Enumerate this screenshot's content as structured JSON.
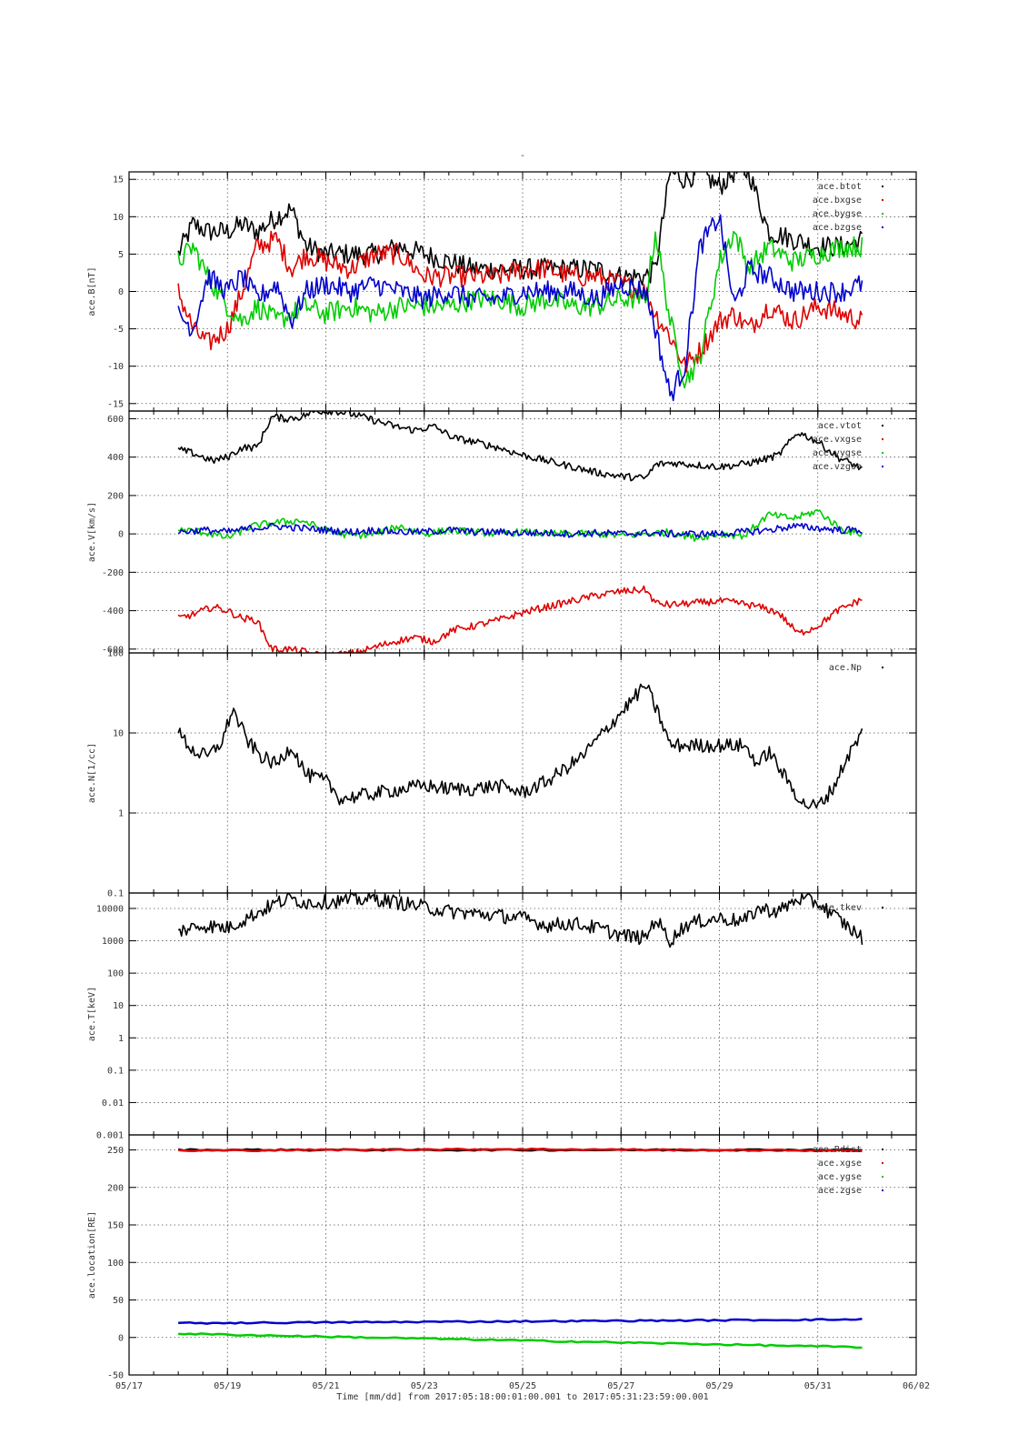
{
  "figure": {
    "title": "-",
    "x_label": "Time [mm/dd]  from 2017:05:18:00:01:00.001  to  2017:05:31:23:59:00.001",
    "x_ticks": [
      "05/17",
      "05/19",
      "05/21",
      "05/23",
      "05/25",
      "05/27",
      "05/29",
      "05/31",
      "06/02"
    ]
  },
  "colors": {
    "black": "#000000",
    "red": "#dd0000",
    "green": "#00cc00",
    "blue": "#0000cc"
  },
  "chart_data": [
    {
      "type": "scatter",
      "ylabel": "ace.B[nT]",
      "ylim": [
        -16,
        16
      ],
      "y_ticks": [
        "15",
        "10",
        "5",
        "0",
        "-5",
        "-10",
        "-15"
      ],
      "y_tick_values": [
        15,
        10,
        5,
        0,
        -5,
        -10,
        -15
      ],
      "grid": true,
      "legend": "top-right",
      "series": [
        {
          "name": "ace.btot",
          "color": "#000000",
          "x": [
            18.0,
            18.3,
            18.6,
            19.0,
            19.3,
            19.6,
            20.0,
            20.3,
            20.6,
            21.0,
            21.5,
            22.0,
            22.5,
            23.0,
            23.5,
            24.0,
            24.5,
            25.0,
            25.5,
            26.0,
            26.5,
            27.0,
            27.5,
            27.7,
            28.0,
            28.3,
            28.6,
            29.0,
            29.3,
            29.6,
            30.0,
            30.5,
            31.0,
            31.5,
            31.9
          ],
          "y": [
            5,
            9,
            8,
            8,
            9,
            8,
            10,
            11,
            6,
            5,
            5,
            5,
            6,
            5,
            4,
            3,
            3,
            3,
            3,
            3,
            3,
            2,
            2,
            3,
            16,
            15,
            16,
            14,
            16,
            16,
            8,
            7,
            6,
            6,
            7
          ]
        },
        {
          "name": "ace.bxgse",
          "color": "#dd0000",
          "x": [
            18.0,
            18.3,
            18.6,
            19.0,
            19.3,
            19.6,
            20.0,
            20.3,
            20.6,
            21.0,
            21.5,
            22.0,
            22.5,
            23.0,
            23.5,
            24.0,
            24.5,
            25.0,
            25.5,
            26.0,
            26.5,
            27.0,
            27.5,
            27.7,
            28.0,
            28.3,
            28.6,
            29.0,
            29.3,
            29.6,
            30.0,
            30.5,
            31.0,
            31.5,
            31.9
          ],
          "y": [
            0,
            -5,
            -7,
            -5,
            0,
            6,
            7,
            3,
            5,
            4,
            3,
            5,
            5,
            2,
            2,
            2,
            2,
            3,
            3,
            2,
            2,
            1,
            0,
            -3,
            -6,
            -10,
            -8,
            -4,
            -3,
            -5,
            -2,
            -4,
            -2,
            -3,
            -4
          ]
        },
        {
          "name": "ace.bygse",
          "color": "#00cc00",
          "x": [
            18.0,
            18.3,
            18.6,
            19.0,
            19.3,
            19.6,
            20.0,
            20.3,
            20.6,
            21.0,
            21.5,
            22.0,
            22.5,
            23.0,
            23.5,
            24.0,
            24.5,
            25.0,
            25.5,
            26.0,
            26.5,
            27.0,
            27.5,
            27.7,
            28.0,
            28.3,
            28.6,
            29.0,
            29.3,
            29.6,
            30.0,
            30.5,
            31.0,
            31.5,
            31.9
          ],
          "y": [
            4,
            6,
            2,
            -2,
            -4,
            -2,
            -4,
            -3,
            -2,
            -3,
            -2,
            -3,
            -2,
            -2,
            -2,
            -1,
            -1,
            -2,
            -1,
            -2,
            -2,
            -1,
            -1,
            8,
            -4,
            -12,
            -9,
            4,
            8,
            3,
            6,
            4,
            5,
            6,
            6
          ]
        },
        {
          "name": "ace.bzgse",
          "color": "#0000cc",
          "x": [
            18.0,
            18.3,
            18.6,
            19.0,
            19.3,
            19.6,
            20.0,
            20.3,
            20.6,
            21.0,
            21.5,
            22.0,
            22.5,
            23.0,
            23.5,
            24.0,
            24.5,
            25.0,
            25.5,
            26.0,
            26.5,
            27.0,
            27.5,
            27.7,
            28.0,
            28.3,
            28.6,
            29.0,
            29.3,
            29.6,
            30.0,
            30.5,
            31.0,
            31.5,
            31.9
          ],
          "y": [
            -3,
            -5,
            2,
            0,
            2,
            -1,
            1,
            -4,
            0,
            1,
            0,
            1,
            0,
            -1,
            0,
            -1,
            -1,
            0,
            0,
            0,
            -1,
            1,
            0,
            -5,
            -14,
            -10,
            6,
            10,
            -2,
            3,
            2,
            0,
            0,
            0,
            1
          ]
        }
      ]
    },
    {
      "type": "scatter",
      "ylabel": "ace.V[km/s]",
      "ylim": [
        -620,
        640
      ],
      "y_ticks": [
        "600",
        "400",
        "200",
        "0",
        "-200",
        "-400",
        "-600"
      ],
      "y_tick_values": [
        600,
        400,
        200,
        0,
        -200,
        -400,
        -600
      ],
      "grid": true,
      "legend": "top-right",
      "series": [
        {
          "name": "ace.vtot",
          "color": "#000000",
          "x": [
            18.0,
            18.3,
            18.7,
            19.0,
            19.3,
            19.6,
            19.9,
            20.2,
            20.5,
            20.8,
            21.2,
            21.6,
            22.0,
            22.4,
            22.8,
            23.2,
            23.6,
            24.0,
            24.5,
            25.0,
            25.5,
            26.0,
            26.5,
            27.0,
            27.5,
            27.7,
            28.0,
            28.5,
            29.0,
            29.4,
            29.8,
            30.2,
            30.6,
            31.0,
            31.4,
            31.9
          ],
          "y": [
            440,
            420,
            380,
            400,
            450,
            450,
            610,
            600,
            610,
            640,
            640,
            620,
            590,
            560,
            540,
            560,
            500,
            480,
            450,
            410,
            380,
            350,
            320,
            300,
            290,
            360,
            370,
            360,
            350,
            360,
            380,
            410,
            530,
            480,
            400,
            340
          ]
        },
        {
          "name": "ace.vxgse",
          "color": "#dd0000",
          "x": [
            18.0,
            18.3,
            18.7,
            19.0,
            19.3,
            19.6,
            19.9,
            20.2,
            20.5,
            20.8,
            21.2,
            21.6,
            22.0,
            22.4,
            22.8,
            23.2,
            23.6,
            24.0,
            24.5,
            25.0,
            25.5,
            26.0,
            26.5,
            27.0,
            27.5,
            27.7,
            28.0,
            28.5,
            29.0,
            29.4,
            29.8,
            30.2,
            30.6,
            31.0,
            31.4,
            31.9
          ],
          "y": [
            -440,
            -420,
            -380,
            -400,
            -440,
            -450,
            -600,
            -600,
            -610,
            -630,
            -630,
            -620,
            -590,
            -560,
            -540,
            -560,
            -500,
            -480,
            -450,
            -410,
            -380,
            -350,
            -320,
            -300,
            -290,
            -360,
            -370,
            -360,
            -350,
            -360,
            -380,
            -410,
            -520,
            -480,
            -400,
            -340
          ]
        },
        {
          "name": "ace.vygse",
          "color": "#00cc00",
          "x": [
            18.0,
            18.5,
            19.0,
            19.5,
            20.0,
            20.5,
            21.0,
            21.5,
            22.0,
            22.5,
            23.0,
            23.5,
            24.0,
            24.5,
            25.0,
            25.5,
            26.0,
            26.5,
            27.0,
            27.5,
            28.0,
            28.5,
            29.0,
            29.5,
            30.0,
            30.5,
            31.0,
            31.5,
            31.9
          ],
          "y": [
            20,
            10,
            -20,
            40,
            60,
            70,
            20,
            -10,
            0,
            40,
            0,
            20,
            10,
            0,
            10,
            0,
            0,
            0,
            -10,
            0,
            10,
            -20,
            0,
            -10,
            100,
            80,
            120,
            20,
            0
          ]
        },
        {
          "name": "ace.vzgse",
          "color": "#0000cc",
          "x": [
            18.0,
            18.5,
            19.0,
            19.5,
            20.0,
            20.5,
            21.0,
            21.5,
            22.0,
            22.5,
            23.0,
            23.5,
            24.0,
            24.5,
            25.0,
            25.5,
            26.0,
            26.5,
            27.0,
            27.5,
            28.0,
            28.5,
            29.0,
            29.5,
            30.0,
            30.5,
            31.0,
            31.5,
            31.9
          ],
          "y": [
            10,
            20,
            10,
            30,
            40,
            30,
            20,
            10,
            20,
            10,
            10,
            20,
            10,
            10,
            5,
            5,
            0,
            5,
            0,
            5,
            0,
            0,
            0,
            10,
            20,
            40,
            30,
            20,
            20
          ]
        }
      ]
    },
    {
      "type": "scatter",
      "ylabel": "ace.N[1/cc]",
      "y_scale": "log",
      "ylim": [
        0.1,
        100
      ],
      "y_ticks": [
        "100",
        "10",
        "1",
        "0.1"
      ],
      "y_tick_values": [
        100,
        10,
        1,
        0.1
      ],
      "grid": true,
      "legend": "top-right",
      "series": [
        {
          "name": "ace.Np",
          "color": "#000000",
          "x": [
            18.0,
            18.3,
            18.6,
            18.9,
            19.1,
            19.4,
            19.7,
            20.0,
            20.3,
            20.6,
            21.0,
            21.3,
            23.0,
            23.5,
            24.0,
            24.5,
            25.0,
            25.5,
            26.2,
            27.5,
            27.8,
            28.0,
            29.5,
            29.8,
            30.0,
            30.3,
            30.7,
            31.0,
            31.3,
            31.6,
            31.9
          ],
          "y": [
            10,
            6,
            5,
            8,
            20,
            8,
            5,
            4,
            7,
            3,
            2.5,
            1.5,
            2.2,
            2,
            2,
            2.2,
            1.8,
            2.5,
            5,
            40,
            15,
            7,
            7,
            4,
            6,
            3,
            1.3,
            1.2,
            2,
            5,
            10
          ]
        }
      ]
    },
    {
      "type": "scatter",
      "ylabel": "ace.T[keV]",
      "y_scale": "log",
      "ylim": [
        0.001,
        30000
      ],
      "y_ticks": [
        "10000",
        "1000",
        "100",
        "10",
        "1",
        "0.1",
        "0.01",
        "0.001"
      ],
      "y_tick_values": [
        10000,
        1000,
        100,
        10,
        1,
        0.1,
        0.01,
        0.001
      ],
      "grid": true,
      "legend": "top-right",
      "series": [
        {
          "name": "ace.tkev",
          "color": "#000000",
          "x": [
            18.0,
            18.5,
            19.0,
            19.5,
            20.0,
            20.3,
            20.6,
            21.0,
            21.5,
            22.0,
            22.5,
            23.0,
            23.5,
            24.0,
            24.5,
            25.0,
            25.5,
            26.0,
            26.5,
            27.0,
            27.5,
            27.7,
            28.0,
            28.3,
            28.6,
            29.0,
            29.5,
            29.8,
            30.2,
            30.6,
            31.0,
            31.4,
            31.9
          ],
          "y": [
            2000,
            3000,
            2500,
            6000,
            15000,
            20000,
            15000,
            16000,
            18000,
            20000,
            15000,
            11000,
            8000,
            7000,
            6000,
            5000,
            3000,
            3500,
            2500,
            1500,
            1200,
            5000,
            1000,
            3000,
            4000,
            5000,
            4000,
            10000,
            8000,
            20000,
            15000,
            5000,
            1200
          ]
        }
      ]
    },
    {
      "type": "scatter",
      "ylabel": "ace.location[RE]",
      "ylim": [
        -50,
        270
      ],
      "y_ticks": [
        "250",
        "200",
        "150",
        "100",
        "50",
        "0",
        "-50"
      ],
      "y_tick_values": [
        250,
        200,
        150,
        100,
        50,
        0,
        -50
      ],
      "grid": true,
      "legend": "top-right",
      "series": [
        {
          "name": "ace.Rdist",
          "color": "#000000",
          "x": [
            18.0,
            31.9
          ],
          "y": [
            250,
            250
          ]
        },
        {
          "name": "ace.xgse",
          "color": "#dd0000",
          "x": [
            18.0,
            21.0,
            25.0,
            28.0,
            31.9
          ],
          "y": [
            249,
            250,
            251,
            250,
            249
          ]
        },
        {
          "name": "ace.ygse",
          "color": "#00cc00",
          "x": [
            18.0,
            31.9
          ],
          "y": [
            5,
            -13
          ]
        },
        {
          "name": "ace.zgse",
          "color": "#0000cc",
          "x": [
            18.0,
            31.9
          ],
          "y": [
            19,
            24
          ]
        }
      ]
    }
  ]
}
